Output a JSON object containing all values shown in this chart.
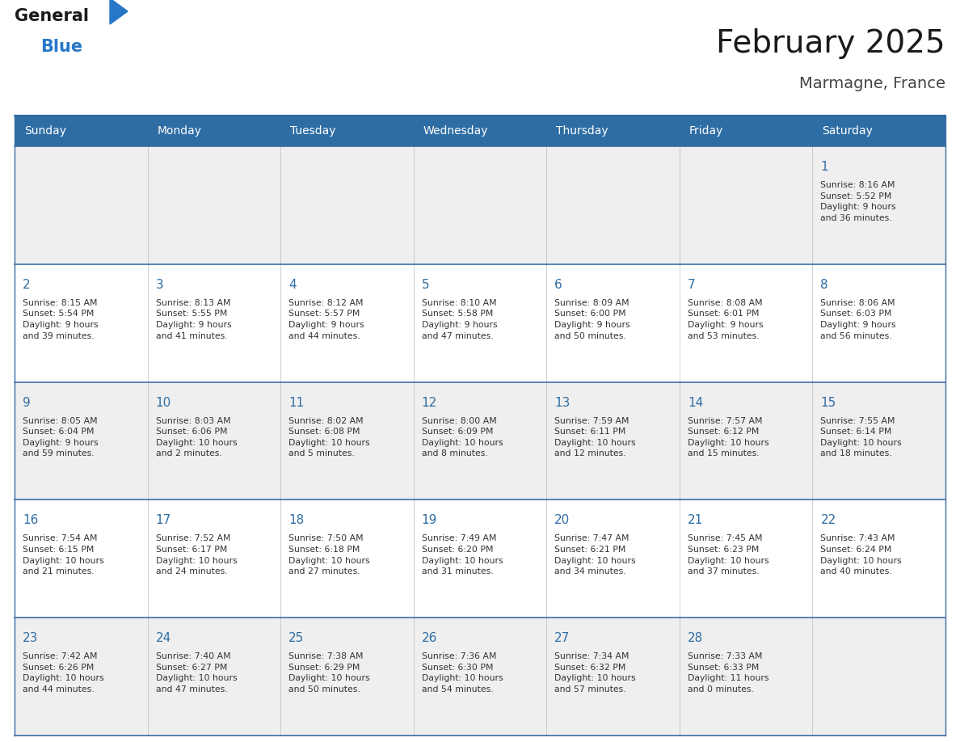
{
  "title": "February 2025",
  "subtitle": "Marmagne, France",
  "days_of_week": [
    "Sunday",
    "Monday",
    "Tuesday",
    "Wednesday",
    "Thursday",
    "Friday",
    "Saturday"
  ],
  "header_bg": "#2E6DA4",
  "header_text": "#FFFFFF",
  "cell_bg_light": "#EFEFEF",
  "cell_bg_white": "#FFFFFF",
  "cell_border_color": "#3A6EA5",
  "day_number_color": "#2E6DA4",
  "info_text_color": "#333333",
  "title_color": "#1a1a1a",
  "subtitle_color": "#444444",
  "logo_general_color": "#1a1a1a",
  "logo_blue_color": "#2777C9",
  "week_rows": [
    {
      "days": [
        {
          "day": null,
          "info": ""
        },
        {
          "day": null,
          "info": ""
        },
        {
          "day": null,
          "info": ""
        },
        {
          "day": null,
          "info": ""
        },
        {
          "day": null,
          "info": ""
        },
        {
          "day": null,
          "info": ""
        },
        {
          "day": 1,
          "info": "Sunrise: 8:16 AM\nSunset: 5:52 PM\nDaylight: 9 hours\nand 36 minutes."
        }
      ]
    },
    {
      "days": [
        {
          "day": 2,
          "info": "Sunrise: 8:15 AM\nSunset: 5:54 PM\nDaylight: 9 hours\nand 39 minutes."
        },
        {
          "day": 3,
          "info": "Sunrise: 8:13 AM\nSunset: 5:55 PM\nDaylight: 9 hours\nand 41 minutes."
        },
        {
          "day": 4,
          "info": "Sunrise: 8:12 AM\nSunset: 5:57 PM\nDaylight: 9 hours\nand 44 minutes."
        },
        {
          "day": 5,
          "info": "Sunrise: 8:10 AM\nSunset: 5:58 PM\nDaylight: 9 hours\nand 47 minutes."
        },
        {
          "day": 6,
          "info": "Sunrise: 8:09 AM\nSunset: 6:00 PM\nDaylight: 9 hours\nand 50 minutes."
        },
        {
          "day": 7,
          "info": "Sunrise: 8:08 AM\nSunset: 6:01 PM\nDaylight: 9 hours\nand 53 minutes."
        },
        {
          "day": 8,
          "info": "Sunrise: 8:06 AM\nSunset: 6:03 PM\nDaylight: 9 hours\nand 56 minutes."
        }
      ]
    },
    {
      "days": [
        {
          "day": 9,
          "info": "Sunrise: 8:05 AM\nSunset: 6:04 PM\nDaylight: 9 hours\nand 59 minutes."
        },
        {
          "day": 10,
          "info": "Sunrise: 8:03 AM\nSunset: 6:06 PM\nDaylight: 10 hours\nand 2 minutes."
        },
        {
          "day": 11,
          "info": "Sunrise: 8:02 AM\nSunset: 6:08 PM\nDaylight: 10 hours\nand 5 minutes."
        },
        {
          "day": 12,
          "info": "Sunrise: 8:00 AM\nSunset: 6:09 PM\nDaylight: 10 hours\nand 8 minutes."
        },
        {
          "day": 13,
          "info": "Sunrise: 7:59 AM\nSunset: 6:11 PM\nDaylight: 10 hours\nand 12 minutes."
        },
        {
          "day": 14,
          "info": "Sunrise: 7:57 AM\nSunset: 6:12 PM\nDaylight: 10 hours\nand 15 minutes."
        },
        {
          "day": 15,
          "info": "Sunrise: 7:55 AM\nSunset: 6:14 PM\nDaylight: 10 hours\nand 18 minutes."
        }
      ]
    },
    {
      "days": [
        {
          "day": 16,
          "info": "Sunrise: 7:54 AM\nSunset: 6:15 PM\nDaylight: 10 hours\nand 21 minutes."
        },
        {
          "day": 17,
          "info": "Sunrise: 7:52 AM\nSunset: 6:17 PM\nDaylight: 10 hours\nand 24 minutes."
        },
        {
          "day": 18,
          "info": "Sunrise: 7:50 AM\nSunset: 6:18 PM\nDaylight: 10 hours\nand 27 minutes."
        },
        {
          "day": 19,
          "info": "Sunrise: 7:49 AM\nSunset: 6:20 PM\nDaylight: 10 hours\nand 31 minutes."
        },
        {
          "day": 20,
          "info": "Sunrise: 7:47 AM\nSunset: 6:21 PM\nDaylight: 10 hours\nand 34 minutes."
        },
        {
          "day": 21,
          "info": "Sunrise: 7:45 AM\nSunset: 6:23 PM\nDaylight: 10 hours\nand 37 minutes."
        },
        {
          "day": 22,
          "info": "Sunrise: 7:43 AM\nSunset: 6:24 PM\nDaylight: 10 hours\nand 40 minutes."
        }
      ]
    },
    {
      "days": [
        {
          "day": 23,
          "info": "Sunrise: 7:42 AM\nSunset: 6:26 PM\nDaylight: 10 hours\nand 44 minutes."
        },
        {
          "day": 24,
          "info": "Sunrise: 7:40 AM\nSunset: 6:27 PM\nDaylight: 10 hours\nand 47 minutes."
        },
        {
          "day": 25,
          "info": "Sunrise: 7:38 AM\nSunset: 6:29 PM\nDaylight: 10 hours\nand 50 minutes."
        },
        {
          "day": 26,
          "info": "Sunrise: 7:36 AM\nSunset: 6:30 PM\nDaylight: 10 hours\nand 54 minutes."
        },
        {
          "day": 27,
          "info": "Sunrise: 7:34 AM\nSunset: 6:32 PM\nDaylight: 10 hours\nand 57 minutes."
        },
        {
          "day": 28,
          "info": "Sunrise: 7:33 AM\nSunset: 6:33 PM\nDaylight: 11 hours\nand 0 minutes."
        },
        {
          "day": null,
          "info": ""
        }
      ]
    }
  ]
}
